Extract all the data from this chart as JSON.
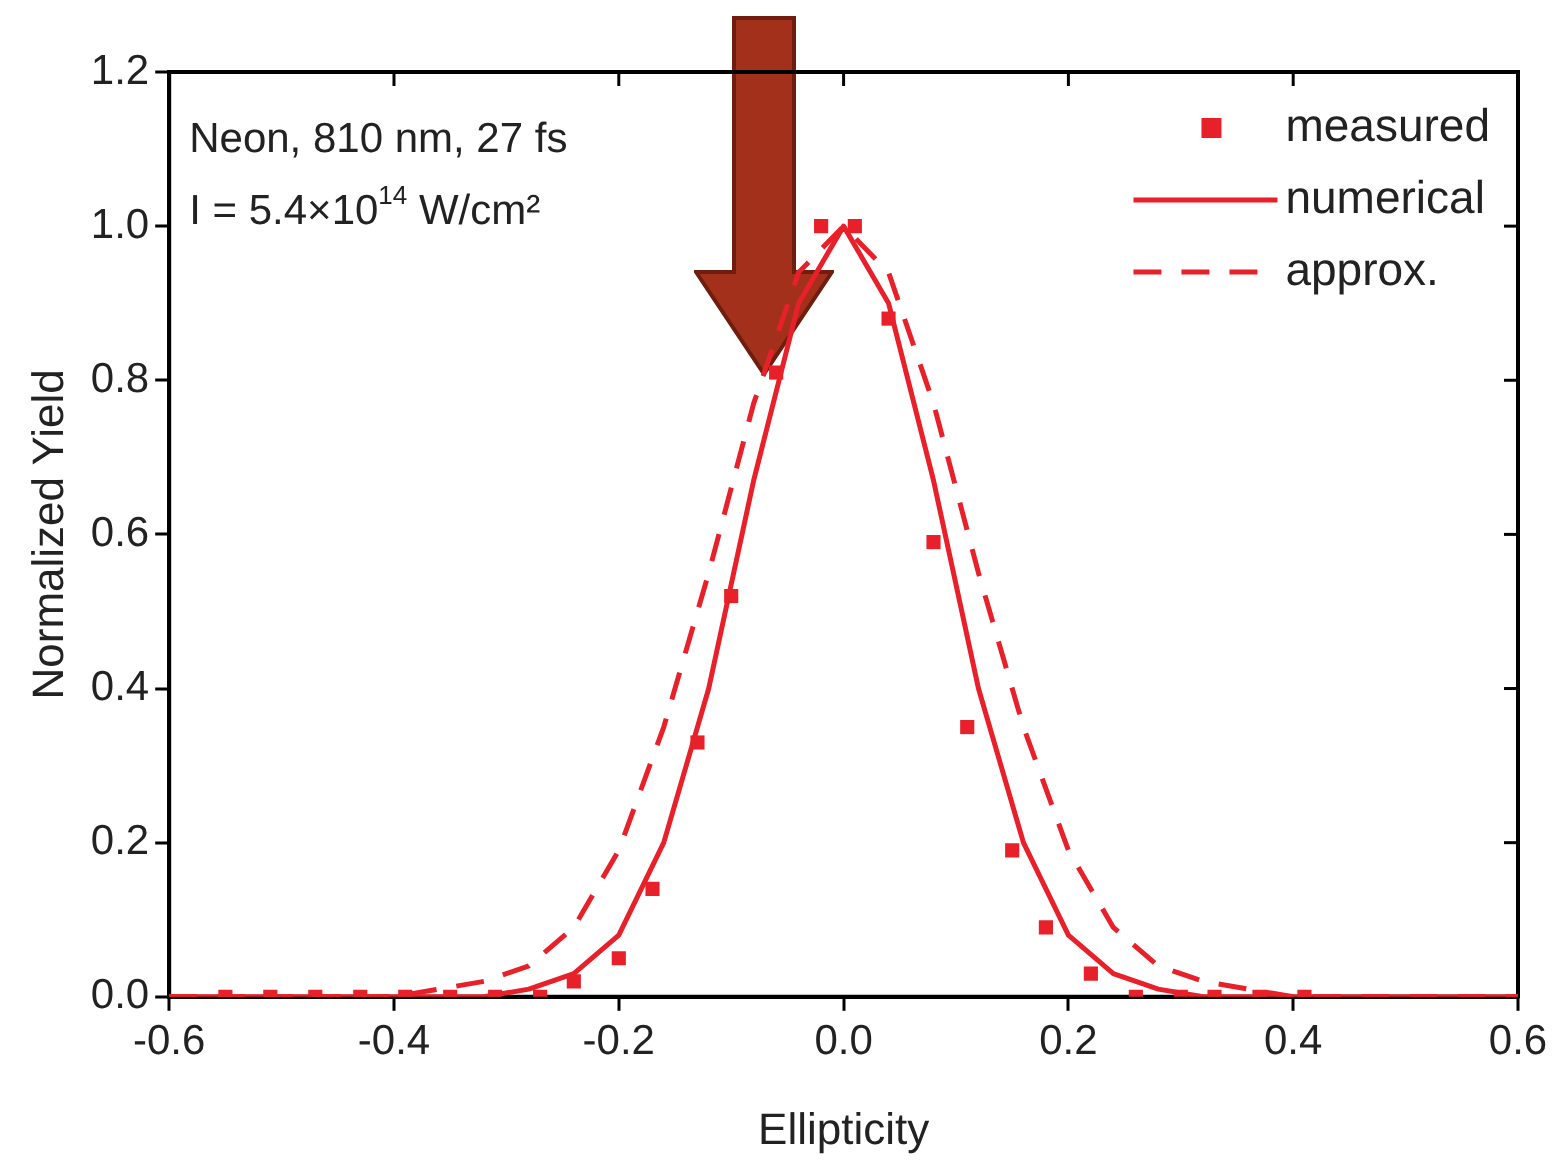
{
  "chart_data": {
    "type": "scatter",
    "xlabel": "Ellipticity",
    "ylabel": "Normalized Yield",
    "annotations": [
      "Neon, 810 nm, 27 fs",
      "I = 5.4×10$^{14}$ W/cm²"
    ],
    "xlim": [
      -0.6,
      0.6
    ],
    "xticks": [
      -0.6,
      -0.4,
      -0.2,
      {
        "value": 0,
        "label": "0.0"
      },
      0.2,
      0.4,
      0.6
    ],
    "ylim": [
      0,
      1.2
    ],
    "yticks": [
      {
        "value": 0,
        "label": "0.0"
      },
      0.2,
      0.4,
      0.6,
      0.8,
      {
        "value": 1,
        "label": "1.0"
      },
      1.2
    ],
    "grid": false,
    "legend": "top right",
    "series": [
      {
        "name": "measured",
        "type": "scatter",
        "marker": "square",
        "color": "#e8202a",
        "x": [
          -0.55,
          -0.51,
          -0.47,
          -0.43,
          -0.39,
          -0.35,
          -0.31,
          -0.27,
          -0.24,
          -0.2,
          -0.17,
          -0.13,
          -0.1,
          -0.06,
          -0.02,
          0.01,
          0.04,
          0.08,
          0.11,
          0.15,
          0.18,
          0.22,
          0.26,
          0.3,
          0.33,
          0.37,
          0.41
        ],
        "values": [
          0,
          0,
          0,
          0,
          0,
          0,
          0,
          0,
          0.02,
          0.05,
          0.14,
          0.33,
          0.52,
          0.81,
          1.0,
          1.0,
          0.88,
          0.59,
          0.35,
          0.19,
          0.09,
          0.03,
          0,
          0,
          0,
          0,
          0
        ]
      },
      {
        "name": "numerical",
        "type": "line",
        "line_style": "solid",
        "color": "#e8202a",
        "x": [
          -0.6,
          -0.4,
          -0.32,
          -0.28,
          -0.24,
          -0.2,
          -0.16,
          -0.12,
          -0.08,
          -0.04,
          0,
          0.04,
          0.08,
          0.12,
          0.16,
          0.2,
          0.24,
          0.28,
          0.32,
          0.4,
          0.6
        ],
        "values": [
          0,
          0,
          0,
          0.01,
          0.03,
          0.08,
          0.2,
          0.4,
          0.67,
          0.9,
          1.0,
          0.9,
          0.67,
          0.4,
          0.2,
          0.08,
          0.03,
          0.01,
          0,
          0,
          0
        ]
      },
      {
        "name": "approx.",
        "type": "line",
        "line_style": "dashed",
        "color": "#e8202a",
        "x": [
          -0.6,
          -0.4,
          -0.36,
          -0.32,
          -0.28,
          -0.24,
          -0.2,
          -0.16,
          -0.12,
          -0.08,
          -0.04,
          0,
          0.04,
          0.08,
          0.12,
          0.16,
          0.2,
          0.24,
          0.28,
          0.32,
          0.36,
          0.4,
          0.6
        ],
        "values": [
          0,
          0,
          0.01,
          0.02,
          0.04,
          0.09,
          0.19,
          0.35,
          0.55,
          0.77,
          0.94,
          1.0,
          0.94,
          0.77,
          0.55,
          0.35,
          0.19,
          0.09,
          0.04,
          0.02,
          0.01,
          0,
          0
        ]
      }
    ]
  }
}
